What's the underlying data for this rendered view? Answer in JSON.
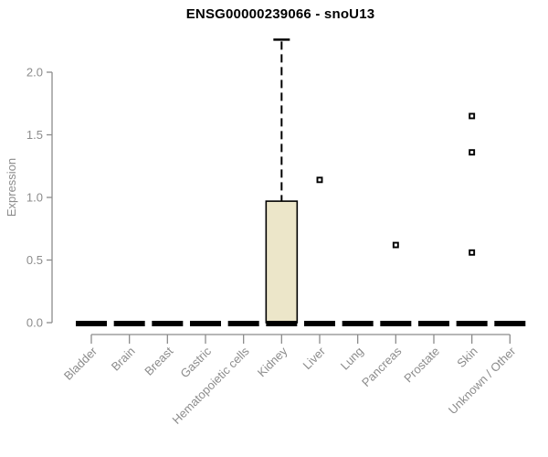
{
  "chart_data": {
    "type": "boxplot",
    "title": "ENSG00000239066 - snoU13",
    "ylabel": "Expression",
    "xlabel": "",
    "yticks": [
      0.0,
      0.5,
      1.0,
      1.5,
      2.0
    ],
    "ylim": [
      0,
      2.3
    ],
    "grid": false,
    "legend": false,
    "categories": [
      "Bladder",
      "Brain",
      "Breast",
      "Gastric",
      "Hematopoietic cells",
      "Kidney",
      "Liver",
      "Lung",
      "Pancreas",
      "Prostate",
      "Skin",
      "Unknown / Other"
    ],
    "boxes": [
      {
        "category": "Bladder",
        "whisker_low": 0,
        "q1": 0,
        "median": 0,
        "q3": 0,
        "whisker_high": 0,
        "outliers": []
      },
      {
        "category": "Brain",
        "whisker_low": 0,
        "q1": 0,
        "median": 0,
        "q3": 0,
        "whisker_high": 0,
        "outliers": []
      },
      {
        "category": "Breast",
        "whisker_low": 0,
        "q1": 0,
        "median": 0,
        "q3": 0,
        "whisker_high": 0,
        "outliers": []
      },
      {
        "category": "Gastric",
        "whisker_low": 0,
        "q1": 0,
        "median": 0,
        "q3": 0,
        "whisker_high": 0,
        "outliers": []
      },
      {
        "category": "Hematopoietic cells",
        "whisker_low": 0,
        "q1": 0,
        "median": 0,
        "q3": 0,
        "whisker_high": 0,
        "outliers": []
      },
      {
        "category": "Kidney",
        "whisker_low": 0,
        "q1": 0,
        "median": 0,
        "q3": 0.97,
        "whisker_high": 2.26,
        "outliers": []
      },
      {
        "category": "Liver",
        "whisker_low": 0,
        "q1": 0,
        "median": 0,
        "q3": 0,
        "whisker_high": 0,
        "outliers": [
          1.14
        ]
      },
      {
        "category": "Lung",
        "whisker_low": 0,
        "q1": 0,
        "median": 0,
        "q3": 0,
        "whisker_high": 0,
        "outliers": []
      },
      {
        "category": "Pancreas",
        "whisker_low": 0,
        "q1": 0,
        "median": 0,
        "q3": 0,
        "whisker_high": 0,
        "outliers": [
          0.62
        ]
      },
      {
        "category": "Prostate",
        "whisker_low": 0,
        "q1": 0,
        "median": 0,
        "q3": 0,
        "whisker_high": 0,
        "outliers": []
      },
      {
        "category": "Skin",
        "whisker_low": 0,
        "q1": 0,
        "median": 0,
        "q3": 0,
        "whisker_high": 0,
        "outliers": [
          1.65,
          1.36,
          0.56
        ]
      },
      {
        "category": "Unknown / Other",
        "whisker_low": 0,
        "q1": 0,
        "median": 0,
        "q3": 0,
        "whisker_high": 0,
        "outliers": []
      }
    ],
    "colors": {
      "box_fill": "#ECE6C9",
      "box_stroke": "#000000",
      "median": "#000000",
      "outlier_stroke": "#000000",
      "outlier_fill": "#FFFFFF",
      "axis": "#8C8C8C",
      "title": "#000000",
      "background": "#FFFFFF"
    }
  }
}
